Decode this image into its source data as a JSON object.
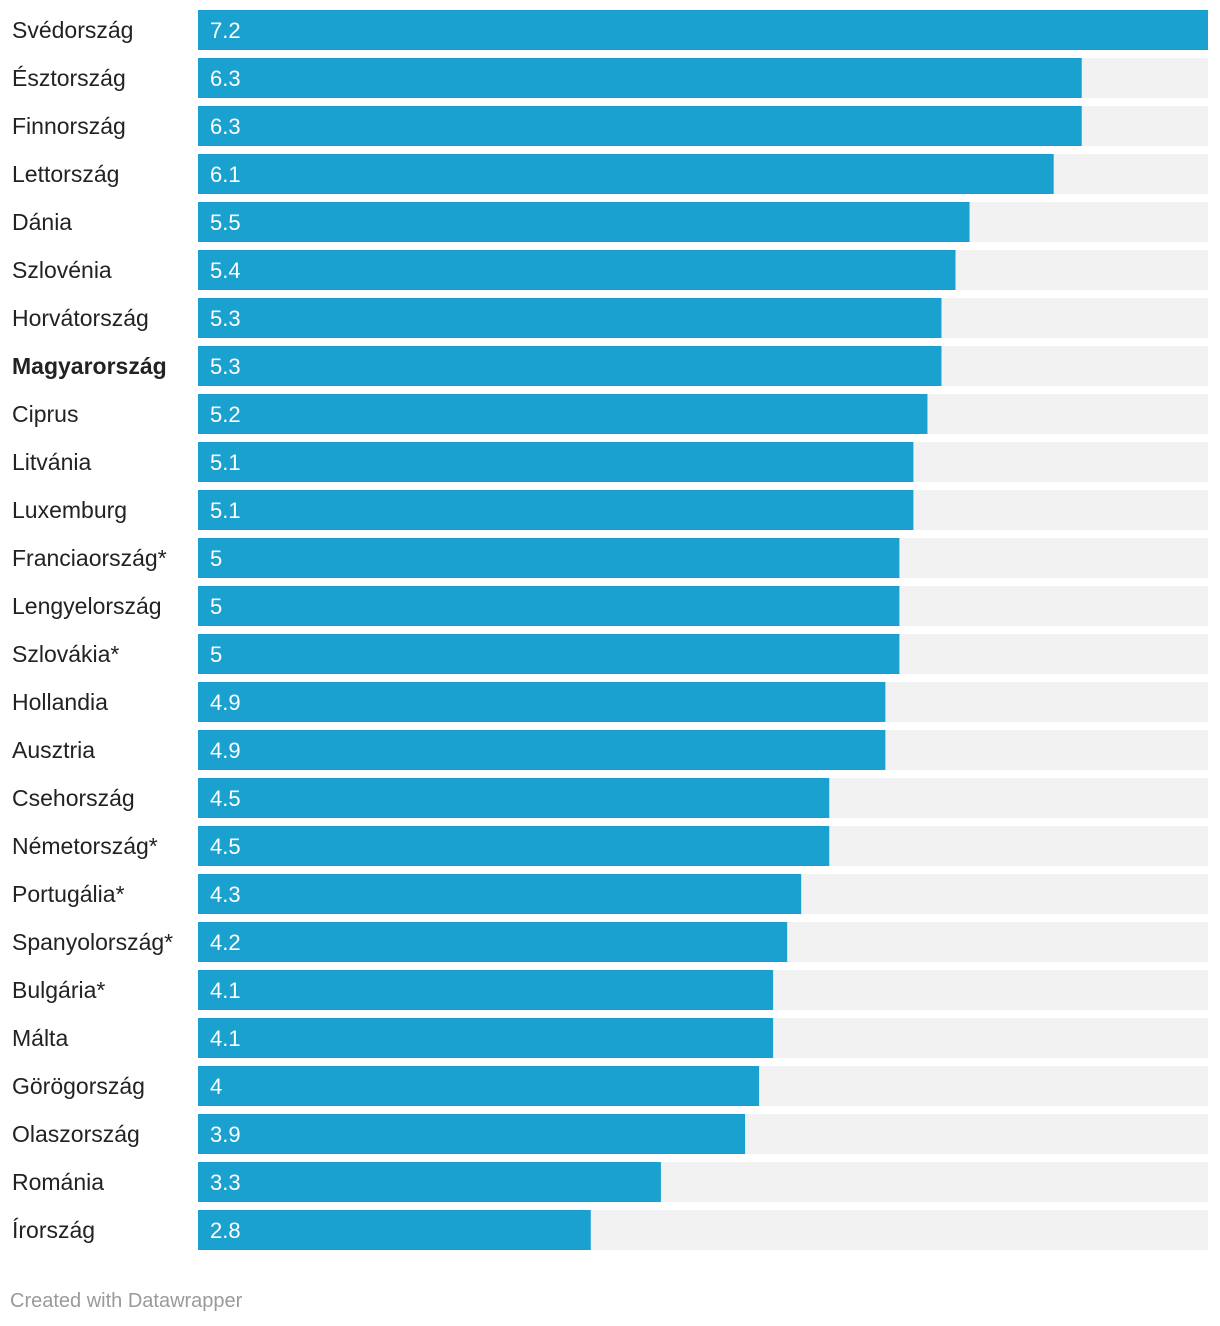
{
  "chart_data": {
    "type": "bar",
    "orientation": "horizontal",
    "categories": [
      "Svédország",
      "Észtország",
      "Finnország",
      "Lettország",
      "Dánia",
      "Szlovénia",
      "Horvátország",
      "Magyarország",
      "Ciprus",
      "Litvánia",
      "Luxemburg",
      "Franciaország*",
      "Lengyelország",
      "Szlovákia*",
      "Hollandia",
      "Ausztria",
      "Csehország",
      "Németország*",
      "Portugália*",
      "Spanyolország*",
      "Bulgária*",
      "Málta",
      "Görögország",
      "Olaszország",
      "Románia",
      "Írország"
    ],
    "values": [
      7.2,
      6.3,
      6.3,
      6.1,
      5.5,
      5.4,
      5.3,
      5.3,
      5.2,
      5.1,
      5.1,
      5,
      5,
      5,
      4.9,
      4.9,
      4.5,
      4.5,
      4.3,
      4.2,
      4.1,
      4.1,
      4,
      3.9,
      3.3,
      2.8
    ],
    "value_labels": [
      "7.2",
      "6.3",
      "6.3",
      "6.1",
      "5.5",
      "5.4",
      "5.3",
      "5.3",
      "5.2",
      "5.1",
      "5.1",
      "5",
      "5",
      "5",
      "4.9",
      "4.9",
      "4.5",
      "4.5",
      "4.3",
      "4.2",
      "4.1",
      "4.1",
      "4",
      "3.9",
      "3.3",
      "2.8"
    ],
    "highlighted_category": "Magyarország",
    "xlim": [
      0,
      7.2
    ],
    "grid": false,
    "legend": "none",
    "colors": {
      "bar": "#1aa1cf",
      "track": "#f2f2f2",
      "value_text": "#ffffff",
      "label_text": "#222222"
    }
  },
  "footer": {
    "credit": "Created with Datawrapper"
  }
}
